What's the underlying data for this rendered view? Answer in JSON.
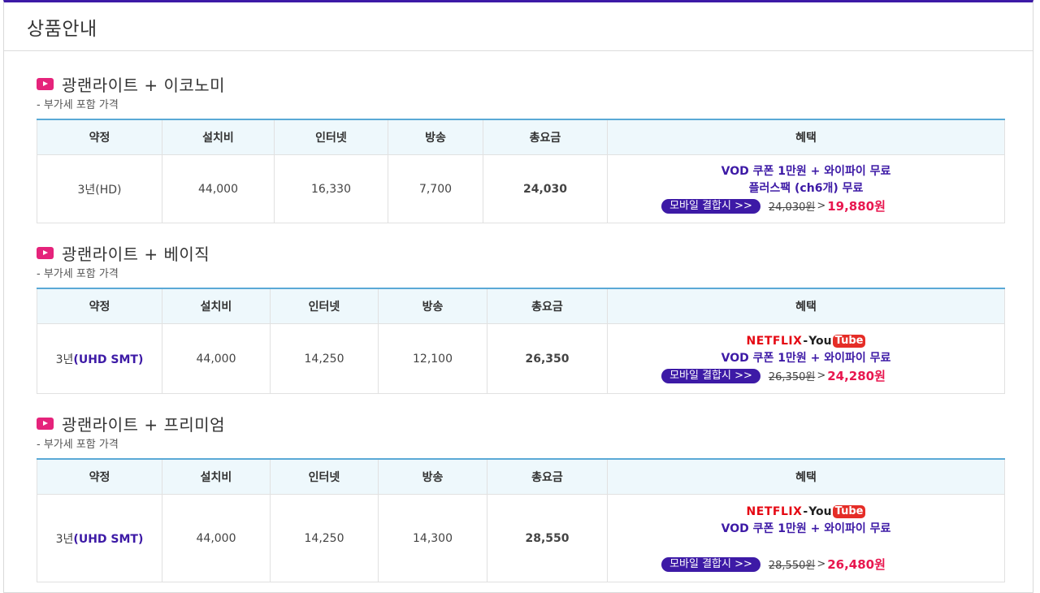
{
  "page": {
    "title": "상품안내"
  },
  "headers": [
    "약정",
    "설치비",
    "인터넷",
    "방송",
    "총요금",
    "혜택"
  ],
  "brands": {
    "netflix": "NETFLIX",
    "dash": "-",
    "you": "You",
    "tube": "Tube"
  },
  "sections": [
    {
      "name": "광랜라이트 + 이코노미",
      "subtitle": "- 부가세 포함 가격",
      "row": {
        "term": "3년(HD)",
        "install": "44,000",
        "internet": "16,330",
        "tv": "7,700",
        "total": "24,030",
        "benefit_lines": [
          "VOD 쿠폰 1만원 + 와이파이 무료",
          "플러스팩 (ch6개) 무료"
        ],
        "promo_label": "모바일 결합시 >>",
        "old_price": "24,030원",
        "arrow": ">",
        "new_price": "19,880원"
      }
    },
    {
      "name": "광랜라이트 + 베이직",
      "subtitle": "- 부가세 포함 가격",
      "row": {
        "term_prefix": "3년",
        "term_suffix": "(UHD SMT)",
        "install": "44,000",
        "internet": "14,250",
        "tv": "12,100",
        "total": "26,350",
        "benefit_lines": [
          "VOD 쿠폰 1만원 + 와이파이 무료"
        ],
        "promo_label": "모바일 결합시 >>",
        "old_price": "26,350원",
        "arrow": ">",
        "new_price": "24,280원"
      }
    },
    {
      "name": "광랜라이트 + 프리미엄",
      "subtitle": "- 부가세 포함 가격",
      "row": {
        "term_prefix": "3년",
        "term_suffix": "(UHD SMT)",
        "install": "44,000",
        "internet": "14,250",
        "tv": "14,300",
        "total": "28,550",
        "benefit_lines": [
          "VOD 쿠폰 1만원 + 와이파이 무료"
        ],
        "promo_label": "모바일 결합시 >>",
        "old_price": "28,550원",
        "arrow": ">",
        "new_price": "26,480원"
      }
    }
  ],
  "colors": {
    "accent": "#3d1aa6",
    "price_red": "#e8174f",
    "header_bg": "#eef8fc",
    "icon_pink": "#e5237b"
  }
}
